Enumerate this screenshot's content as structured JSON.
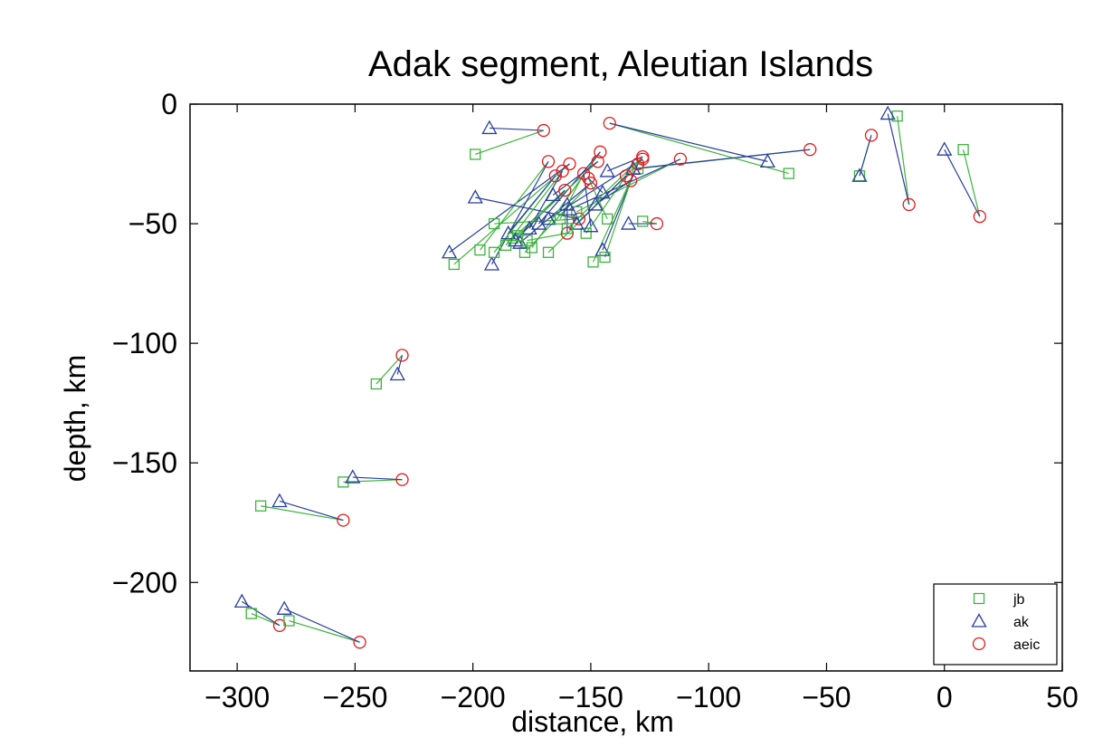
{
  "chart_data": {
    "type": "scatter",
    "title": "Adak segment, Aleutian Islands",
    "xlabel": "distance, km",
    "ylabel": "depth, km",
    "xlim": [
      -320,
      50
    ],
    "ylim": [
      -237,
      0
    ],
    "xticks": [
      -300,
      -250,
      -200,
      -150,
      -100,
      -50,
      0,
      50
    ],
    "yticks": [
      0,
      -50,
      -100,
      -150,
      -200
    ],
    "xtick_labels": [
      "−300",
      "−250",
      "−200",
      "−150",
      "−100",
      "−50",
      "0",
      "50"
    ],
    "ytick_labels": [
      "0",
      "−50",
      "−100",
      "−150",
      "−200"
    ],
    "grid": false,
    "legend_position": "bottom-right",
    "series": [
      {
        "name": "jb",
        "marker": "square",
        "color": "#3cb43c"
      },
      {
        "name": "ak",
        "marker": "triangle",
        "color": "#2a3f9e"
      },
      {
        "name": "aeic",
        "marker": "circle",
        "color": "#e41a1c"
      }
    ],
    "events": [
      {
        "jb": [
          -294,
          -213
        ],
        "ak": [
          -298,
          -208
        ],
        "aeic": [
          -282,
          -218
        ]
      },
      {
        "jb": [
          -278,
          -216
        ],
        "ak": [
          -280,
          -211
        ],
        "aeic": [
          -248,
          -225
        ]
      },
      {
        "jb": [
          -290,
          -168
        ],
        "ak": [
          -282,
          -166
        ],
        "aeic": [
          -255,
          -174
        ]
      },
      {
        "jb": [
          -255,
          -158
        ],
        "ak": [
          -251,
          -156
        ],
        "aeic": [
          -230,
          -157
        ]
      },
      {
        "jb": [
          -241,
          -117
        ],
        "ak": [
          -232,
          -113
        ],
        "aeic": [
          -230,
          -105
        ]
      },
      {
        "jb": [
          -199,
          -21
        ],
        "ak": [
          -193,
          -10
        ],
        "aeic": [
          -170,
          -11
        ]
      },
      {
        "jb": [
          -66,
          -29
        ],
        "ak": [
          -75,
          -24
        ],
        "aeic": [
          -142,
          -8
        ]
      },
      {
        "jb": [
          -130,
          -27
        ],
        "ak": [
          -132,
          -27
        ],
        "aeic": [
          -57,
          -19
        ]
      },
      {
        "jb": [
          -36,
          -30
        ],
        "ak": [
          -36,
          -30
        ],
        "aeic": [
          -31,
          -13
        ]
      },
      {
        "jb": [
          -20,
          -5
        ],
        "ak": [
          -24,
          -4
        ],
        "aeic": [
          -15,
          -42
        ]
      },
      {
        "jb": [
          8,
          -19
        ],
        "ak": [
          0,
          -19
        ],
        "aeic": [
          15,
          -47
        ]
      },
      {
        "jb": [
          -208,
          -67
        ],
        "ak": [
          -210,
          -62
        ],
        "aeic": [
          -159,
          -25
        ]
      },
      {
        "jb": [
          -197,
          -61
        ],
        "ak": [
          -192,
          -67
        ],
        "aeic": [
          -168,
          -24
        ]
      },
      {
        "jb": [
          -191,
          -50
        ],
        "ak": [
          -199,
          -39
        ],
        "aeic": [
          -155,
          -48
        ]
      },
      {
        "jb": [
          -191,
          -62
        ],
        "ak": [
          -185,
          -54
        ],
        "aeic": [
          -165,
          -30
        ]
      },
      {
        "jb": [
          -183,
          -56
        ],
        "ak": [
          -182,
          -57
        ],
        "aeic": [
          -161,
          -36
        ]
      },
      {
        "jb": [
          -178,
          -62
        ],
        "ak": [
          -180,
          -58
        ],
        "aeic": [
          -150,
          -33
        ]
      },
      {
        "jb": [
          -175,
          -60
        ],
        "ak": [
          -172,
          -50
        ],
        "aeic": [
          -146,
          -20
        ]
      },
      {
        "jb": [
          -168,
          -62
        ],
        "ak": [
          -168,
          -48
        ],
        "aeic": [
          -128,
          -23
        ]
      },
      {
        "jb": [
          -156,
          -45
        ],
        "ak": [
          -159,
          -44
        ],
        "aeic": [
          -112,
          -23
        ]
      },
      {
        "jb": [
          -152,
          -54
        ],
        "ak": [
          -156,
          -50
        ],
        "aeic": [
          -135,
          -30
        ]
      },
      {
        "jb": [
          -149,
          -66
        ],
        "ak": [
          -145,
          -61
        ],
        "aeic": [
          -130,
          -25
        ]
      },
      {
        "jb": [
          -144,
          -64
        ],
        "ak": [
          -148,
          -42
        ],
        "aeic": [
          -133,
          -32
        ]
      },
      {
        "jb": [
          -143,
          -48
        ],
        "ak": [
          -145,
          -37
        ],
        "aeic": [
          -151,
          -31
        ]
      },
      {
        "jb": [
          -128,
          -49
        ],
        "ak": [
          -134,
          -50
        ],
        "aeic": [
          -122,
          -50
        ]
      },
      {
        "jb": [
          -186,
          -59
        ],
        "ak": [
          -176,
          -52
        ],
        "aeic": [
          -162,
          -28
        ]
      },
      {
        "jb": [
          -181,
          -55
        ],
        "ak": [
          -166,
          -38
        ],
        "aeic": [
          -147,
          -24
        ]
      },
      {
        "jb": [
          -177,
          -57
        ],
        "ak": [
          -160,
          -42
        ],
        "aeic": [
          -160,
          -54
        ]
      },
      {
        "jb": [
          -163,
          -48
        ],
        "ak": [
          -150,
          -51
        ],
        "aeic": [
          -153,
          -29
        ]
      },
      {
        "jb": [
          -160,
          -52
        ],
        "ak": [
          -143,
          -28
        ],
        "aeic": [
          -128,
          -22
        ]
      }
    ]
  }
}
